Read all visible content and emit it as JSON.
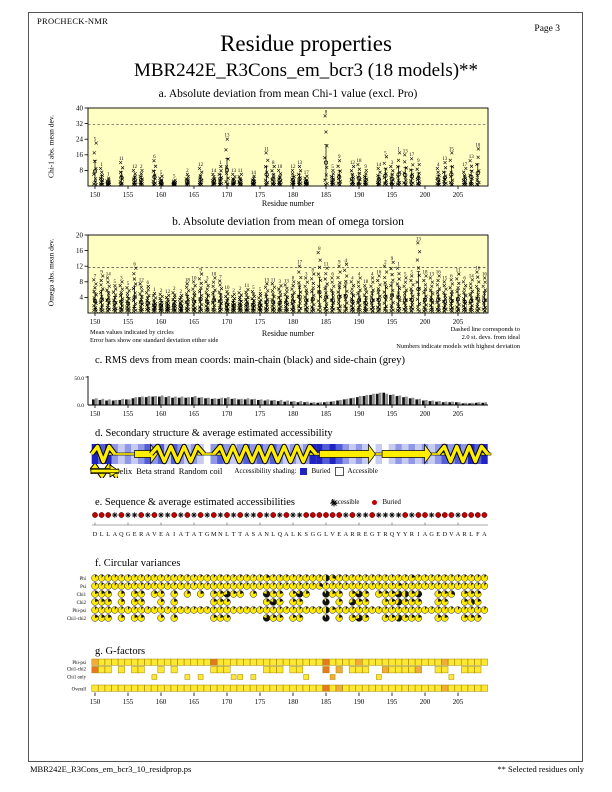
{
  "page": {
    "app": "PROCHECK-NMR",
    "page_label": "Page  3",
    "title": "Residue properties",
    "subtitle": "MBR242E_R3Cons_em_bcr3 (18 models)**",
    "footer_left": "MBR242E_R3Cons_em_bcr3_10_residprop.ps",
    "footer_right": "** Selected residues only"
  },
  "colors": {
    "plot_bg": "#FFFFC4",
    "glyph_yellow": "#FFEE00",
    "buried_blue": "#1F24C0",
    "buried_red": "#C00000",
    "square_yellow": "#FFE833",
    "square_orange_light": "#F4AC38",
    "square_orange": "#E87820",
    "bar_black": "#111111",
    "bar_grey": "#909090"
  },
  "notes": {
    "left1": "Mean values indicated by circles",
    "left2": "Error bars show one standard deviation either side",
    "right1": "Dashed line corresponds to",
    "right2": "2.0 st. devs. from ideal",
    "right3": "Numbers indicate models with highest deviation"
  },
  "chart_data": [
    {
      "id": "chi1",
      "type": "scatter",
      "title": "a. Absolute deviation from mean Chi-1 value (excl. Pro)",
      "ylabel": "Chi-1 abs. mean dev.",
      "xlabel": "Residue number",
      "ylim": [
        0,
        40
      ],
      "yticks": [
        8,
        16,
        24,
        32,
        40
      ],
      "xlim": [
        149,
        210
      ],
      "xticks": [
        150,
        155,
        160,
        165,
        170,
        175,
        180,
        185,
        190,
        195,
        200,
        205
      ],
      "dashed_y": 31.5,
      "points": [
        {
          "r": 150,
          "top": 22,
          "m": "5"
        },
        {
          "r": 151,
          "top": 9,
          "m": "1"
        },
        {
          "r": 152,
          "top": 4,
          "m": "1"
        },
        {
          "r": 154,
          "top": 12,
          "m": "11"
        },
        {
          "r": 156,
          "top": 8,
          "m": "12"
        },
        {
          "r": 157,
          "top": 8,
          "m": "2"
        },
        {
          "r": 159,
          "top": 13,
          "m": "6"
        },
        {
          "r": 160,
          "top": 5,
          "m": "5"
        },
        {
          "r": 162,
          "top": 3,
          "m": "5"
        },
        {
          "r": 164,
          "top": 6,
          "m": "2"
        },
        {
          "r": 166,
          "top": 9,
          "m": "12"
        },
        {
          "r": 168,
          "top": 6,
          "m": "14"
        },
        {
          "r": 169,
          "top": 10,
          "m": "1"
        },
        {
          "r": 170,
          "top": 24,
          "m": "13"
        },
        {
          "r": 171,
          "top": 6,
          "m": "13"
        },
        {
          "r": 172,
          "top": 6,
          "m": "11"
        },
        {
          "r": 174,
          "top": 5,
          "m": "14"
        },
        {
          "r": 176,
          "top": 17,
          "m": "11"
        },
        {
          "r": 177,
          "top": 10,
          "m": "8"
        },
        {
          "r": 178,
          "top": 8,
          "m": "10"
        },
        {
          "r": 180,
          "top": 8,
          "m": "12"
        },
        {
          "r": 181,
          "top": 10,
          "m": "13"
        },
        {
          "r": 182,
          "top": 5,
          "m": "17"
        },
        {
          "r": 185,
          "top": 36,
          "m": "8"
        },
        {
          "r": 186,
          "top": 8,
          "m": "5"
        },
        {
          "r": 187,
          "top": 13,
          "m": "9"
        },
        {
          "r": 189,
          "top": 10,
          "m": "12"
        },
        {
          "r": 190,
          "top": 11,
          "m": "18"
        },
        {
          "r": 191,
          "top": 8,
          "m": "9"
        },
        {
          "r": 193,
          "top": 9,
          "m": "14"
        },
        {
          "r": 194,
          "top": 15,
          "m": "5"
        },
        {
          "r": 195,
          "top": 10,
          "m": "3"
        },
        {
          "r": 196,
          "top": 17,
          "m": "1"
        },
        {
          "r": 197,
          "top": 16,
          "m": "13"
        },
        {
          "r": 198,
          "top": 14,
          "m": "17"
        },
        {
          "r": 199,
          "top": 11,
          "m": "9"
        },
        {
          "r": 202,
          "top": 9,
          "m": "4"
        },
        {
          "r": 203,
          "top": 12,
          "m": "13"
        },
        {
          "r": 204,
          "top": 17,
          "m": "15"
        },
        {
          "r": 206,
          "top": 9,
          "m": "17"
        },
        {
          "r": 207,
          "top": 13,
          "m": "13"
        },
        {
          "r": 208,
          "top": 19,
          "m": "10"
        }
      ]
    },
    {
      "id": "omega",
      "type": "scatter",
      "title": "b. Absolute deviation from mean of omega torsion",
      "ylabel": "Omega abs. mean dev.",
      "xlabel": "Residue number",
      "ylim": [
        0,
        20
      ],
      "yticks": [
        4,
        8,
        12,
        16,
        20
      ],
      "xlim": [
        149,
        210
      ],
      "xticks": [
        150,
        155,
        160,
        165,
        170,
        175,
        180,
        185,
        190,
        195,
        200,
        205
      ],
      "dashed_y": 11.7,
      "points": [
        {
          "r": 150,
          "top": 8.5,
          "m": "7"
        },
        {
          "r": 151,
          "top": 9.5,
          "m": "9"
        },
        {
          "r": 152,
          "top": 9,
          "m": "14"
        },
        {
          "r": 153,
          "top": 7,
          "m": "5"
        },
        {
          "r": 154,
          "top": 8,
          "m": "3"
        },
        {
          "r": 155,
          "top": 6.5,
          "m": "5"
        },
        {
          "r": 156,
          "top": 11.5,
          "m": "6"
        },
        {
          "r": 157,
          "top": 7.5,
          "m": "12"
        },
        {
          "r": 158,
          "top": 6.8,
          "m": "6"
        },
        {
          "r": 159,
          "top": 5,
          "m": "1"
        },
        {
          "r": 160,
          "top": 4.8,
          "m": "2"
        },
        {
          "r": 161,
          "top": 4.5,
          "m": "12"
        },
        {
          "r": 162,
          "top": 5.2,
          "m": "2"
        },
        {
          "r": 163,
          "top": 4.5,
          "m": "2"
        },
        {
          "r": 164,
          "top": 7.5,
          "m": "18"
        },
        {
          "r": 165,
          "top": 8,
          "m": "10"
        },
        {
          "r": 166,
          "top": 10,
          "m": "9"
        },
        {
          "r": 167,
          "top": 8,
          "m": "3"
        },
        {
          "r": 168,
          "top": 9,
          "m": "10"
        },
        {
          "r": 169,
          "top": 8.2,
          "m": "7"
        },
        {
          "r": 170,
          "top": 5.5,
          "m": "10"
        },
        {
          "r": 171,
          "top": 4.8,
          "m": "2"
        },
        {
          "r": 172,
          "top": 5.2,
          "m": "2"
        },
        {
          "r": 173,
          "top": 6,
          "m": "11"
        },
        {
          "r": 174,
          "top": 5.5,
          "m": "5"
        },
        {
          "r": 175,
          "top": 5,
          "m": "5"
        },
        {
          "r": 176,
          "top": 7.5,
          "m": "13"
        },
        {
          "r": 177,
          "top": 7.5,
          "m": "11"
        },
        {
          "r": 178,
          "top": 7,
          "m": "3"
        },
        {
          "r": 179,
          "top": 7.2,
          "m": "13"
        },
        {
          "r": 180,
          "top": 8,
          "m": "8"
        },
        {
          "r": 181,
          "top": 12,
          "m": "17"
        },
        {
          "r": 182,
          "top": 9,
          "m": "3"
        },
        {
          "r": 183,
          "top": 10,
          "m": "8"
        },
        {
          "r": 184,
          "top": 15.5,
          "m": "8"
        },
        {
          "r": 185,
          "top": 11.5,
          "m": "11"
        },
        {
          "r": 186,
          "top": 9,
          "m": "6"
        },
        {
          "r": 187,
          "top": 12,
          "m": "9"
        },
        {
          "r": 188,
          "top": 12.5,
          "m": "4"
        },
        {
          "r": 189,
          "top": 8,
          "m": "4"
        },
        {
          "r": 190,
          "top": 9,
          "m": "4"
        },
        {
          "r": 191,
          "top": 7,
          "m": "18"
        },
        {
          "r": 192,
          "top": 9,
          "m": "4"
        },
        {
          "r": 193,
          "top": 9.5,
          "m": "16"
        },
        {
          "r": 194,
          "top": 12,
          "m": "2"
        },
        {
          "r": 195,
          "top": 13,
          "m": "9"
        },
        {
          "r": 196,
          "top": 11.5,
          "m": "1"
        },
        {
          "r": 197,
          "top": 9,
          "m": "5"
        },
        {
          "r": 198,
          "top": 9.5,
          "m": "5"
        },
        {
          "r": 199,
          "top": 18,
          "m": "13"
        },
        {
          "r": 200,
          "top": 9.5,
          "m": "18"
        },
        {
          "r": 201,
          "top": 9,
          "m": "13"
        },
        {
          "r": 202,
          "top": 9.5,
          "m": "16"
        },
        {
          "r": 203,
          "top": 8,
          "m": "15"
        },
        {
          "r": 204,
          "top": 8.5,
          "m": "6"
        },
        {
          "r": 205,
          "top": 10,
          "m": "11"
        },
        {
          "r": 206,
          "top": 8,
          "m": "6"
        },
        {
          "r": 207,
          "top": 8.5,
          "m": "14"
        },
        {
          "r": 208,
          "top": 10.5,
          "m": "16"
        },
        {
          "r": 209,
          "top": 9,
          "m": "16"
        }
      ]
    },
    {
      "id": "rms",
      "type": "bar",
      "title": "c. RMS devs from mean coords: main-chain (black) and side-chain (grey)",
      "ylim": [
        0,
        50
      ],
      "ytick_labels": [
        "50.0",
        "0.0"
      ],
      "residue_start": 150,
      "xticks": [
        150,
        155,
        160,
        165,
        170,
        175,
        180,
        185,
        190,
        195,
        200,
        205
      ],
      "main": [
        10,
        9,
        8,
        8,
        9,
        10,
        12,
        14,
        14,
        15,
        15,
        14,
        13,
        13,
        13,
        14,
        13,
        12,
        11,
        11,
        12,
        11,
        10,
        10,
        10,
        9,
        8,
        8,
        7,
        6,
        6,
        5,
        5,
        4,
        4,
        5,
        6,
        8,
        10,
        12,
        14,
        16,
        18,
        20,
        22,
        18,
        16,
        14,
        12,
        10,
        8,
        7,
        6,
        5,
        5,
        5,
        3,
        3,
        4,
        4
      ],
      "side": [
        12,
        11,
        10,
        9,
        11,
        10,
        14,
        15,
        16,
        16,
        17,
        16,
        15,
        15,
        14,
        16,
        14,
        13,
        12,
        13,
        14,
        12,
        11,
        12,
        11,
        10,
        10,
        9,
        9,
        8,
        7,
        7,
        6,
        5,
        5,
        6,
        7,
        9,
        11,
        13,
        16,
        18,
        20,
        22,
        20,
        19,
        17,
        15,
        13,
        11,
        9,
        8,
        7,
        6,
        6,
        5,
        4,
        4,
        5,
        5
      ]
    }
  ],
  "sections": {
    "d": {
      "title": "d. Secondary structure & average estimated accessibility",
      "key_label": "Key:-",
      "key": {
        "helix": "Helix",
        "strand": "Beta strand",
        "coil": "Random coil",
        "shading_label": "Accessibility shading:",
        "buried": "Buried",
        "accessible": "Accessible"
      },
      "segments": [
        {
          "type": "helix",
          "from": 150,
          "to": 152.5
        },
        {
          "type": "coil",
          "from": 152.5,
          "to": 157
        },
        {
          "type": "strand",
          "from": 156.5,
          "to": 159
        },
        {
          "type": "helix",
          "from": 159,
          "to": 166
        },
        {
          "type": "coil",
          "from": 166,
          "to": 169
        },
        {
          "type": "helix",
          "from": 168.5,
          "to": 183
        },
        {
          "type": "coil",
          "from": 183,
          "to": 185
        },
        {
          "type": "strand",
          "from": 184.5,
          "to": 192
        },
        {
          "type": "coil",
          "from": 192,
          "to": 194.5
        },
        {
          "type": "strand",
          "from": 194,
          "to": 200.5
        },
        {
          "type": "coil",
          "from": 200.5,
          "to": 202.5
        },
        {
          "type": "helix",
          "from": 202.5,
          "to": 209
        },
        {
          "type": "coil",
          "from": 209,
          "to": 209.5
        }
      ],
      "shading_levels": "434212123231321210232123232321212443432121010121212123232434"
    },
    "e": {
      "title": "e. Sequence & average estimated accessibilities",
      "legend": {
        "accessible": "Accessible",
        "buried": "Buried"
      },
      "sequence": "DLLAQGERAVEAIATATGMNLTTASANLQALKSGGLVEARREGTRQYYRIAGEDVARLFA",
      "burial": "BBBABAABABAABABABABABABAABABABAABBBBBBABAABAAAABABBABBBABBBB"
    },
    "f": {
      "title": "f. Circular variances",
      "rows": [
        {
          "label": "Phi",
          "v": "111111111111111111111111112111111115311111111111211111111111"
        },
        {
          "label": "Psi",
          "v": "111111111111111111111111111111111131111111111121111111111111"
        },
        {
          "label": "Chi1",
          "v": "222-2-22-22-2-2-2-22722-2-822-282--922-282-2227526--223-222-"
        },
        {
          "label": "Chi2",
          "v": "222-2-22--2-2-----222-----282-22---9-2-722--226222--22--242-"
        },
        {
          "label": "Phi-psi",
          "v": "111111111111111111111111111111111115211111111111111111111111"
        },
        {
          "label": "Chi1-chi2",
          "v": "222-2-22--2-2-----222-----822-22---9-2-272--226222--22--222-"
        }
      ]
    },
    "g": {
      "title": "g. G-factors",
      "xticks": [
        150,
        155,
        160,
        165,
        170,
        175,
        180,
        185,
        190,
        195,
        200,
        205
      ],
      "rows": [
        {
          "label": "Phi-psi",
          "v": "100000000000000000200000000000000002000010000000000001000000"
        },
        {
          "label": "Chi1-chi2",
          "v": "200-0-00--0-0-----000-----000-00---2-1-000--100001--00--000-"
        },
        {
          "label": "Chi1 only",
          "v": "---------0----0-0----00-0-------0---1------0----------0-----"
        },
        {
          "label": "Overall",
          "v": "000000000000000000000000000000000002010000000000000001000000"
        }
      ]
    }
  }
}
